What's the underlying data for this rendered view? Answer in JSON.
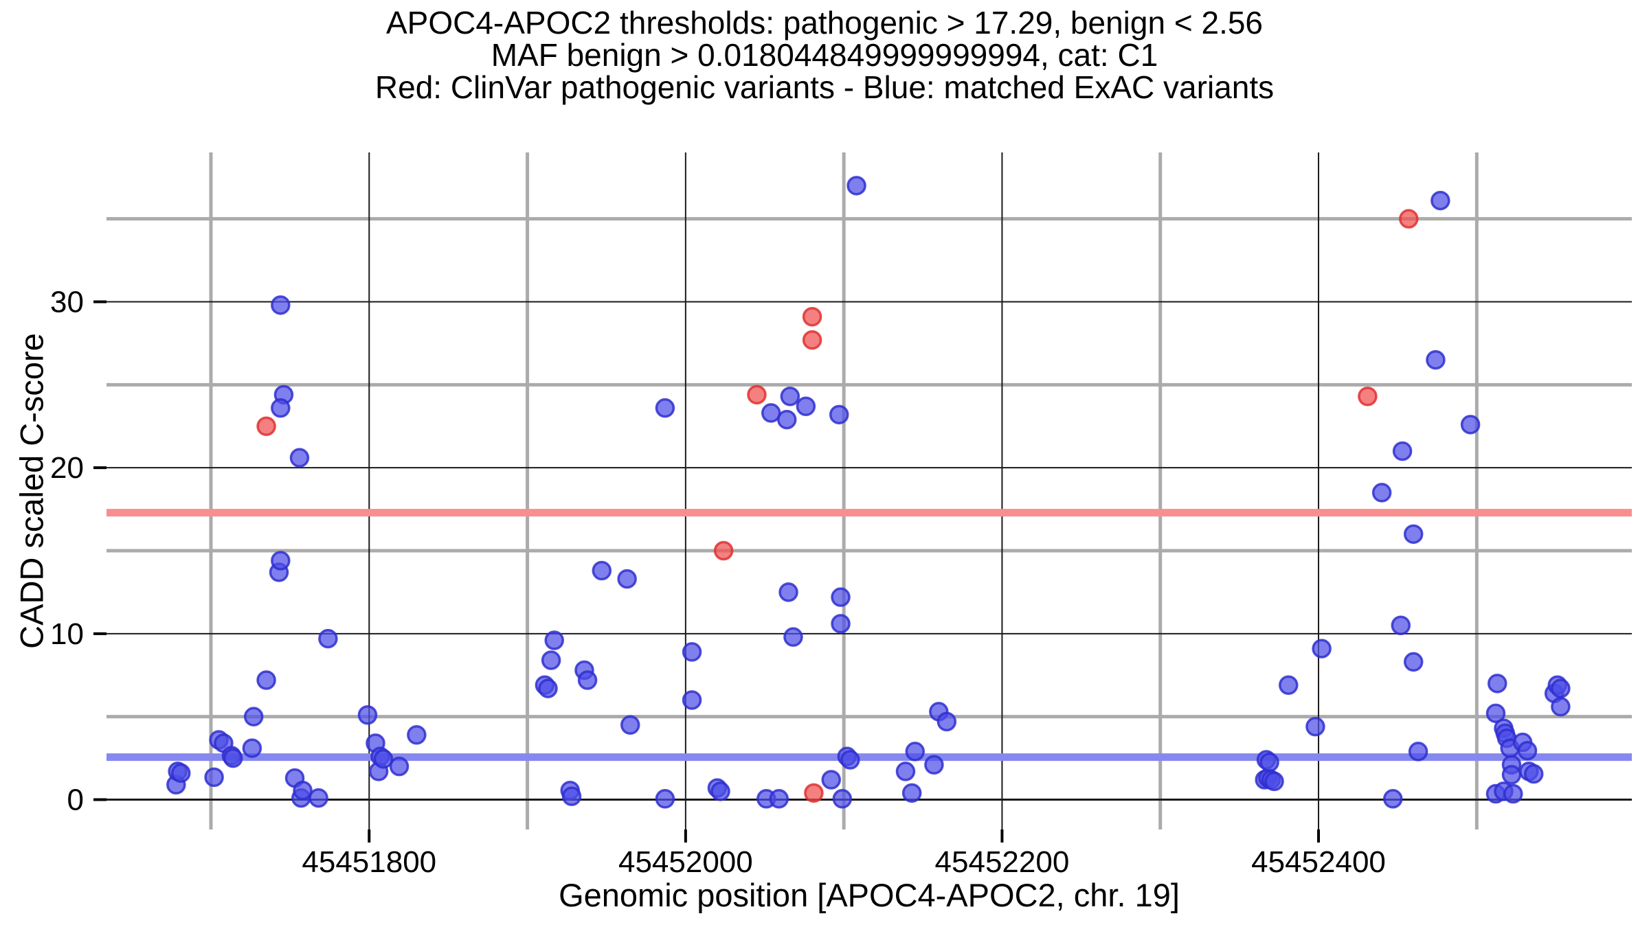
{
  "colors": {
    "background": "#ffffff",
    "grid_major": "#1a1a1a",
    "grid_minor": "#ababab",
    "tick": "#000000",
    "text": "#000000",
    "pathogenic_band": "#f98e8e",
    "benign_band": "#8688f0",
    "clinvar_point_fill": "#f04f4f",
    "clinvar_point_stroke": "#e03030",
    "exac_point_fill": "#4d4de8",
    "exac_point_stroke": "#2f2fd0"
  },
  "chart_data": {
    "type": "scatter",
    "title_lines": [
      "APOC4-APOC2 thresholds: pathogenic > 17.29, benign < 2.56",
      "MAF benign > 0.018044849999999994, cat: C1",
      "Red: ClinVar pathogenic variants - Blue: matched ExAC variants"
    ],
    "xlabel": "Genomic position [APOC4-APOC2, chr. 19]",
    "ylabel": "CADD scaled C-score",
    "xlim": [
      45451634,
      45452598
    ],
    "ylim": [
      -1.8,
      39.0
    ],
    "x_ticks": [
      45451800,
      45452000,
      45452200,
      45452400
    ],
    "x_tick_labels": [
      "45451800",
      "45452000",
      "45452200",
      "45452400"
    ],
    "x_minor": [
      45451700,
      45451900,
      45452100,
      45452300,
      45452500
    ],
    "y_ticks": [
      0,
      10,
      20,
      30
    ],
    "y_tick_labels": [
      "0",
      "10",
      "20",
      "30"
    ],
    "y_minor": [
      5,
      15,
      25,
      35
    ],
    "grid": true,
    "legend": "none",
    "hlines": [
      {
        "name": "pathogenic-threshold-band",
        "y": 17.29,
        "color_key": "pathogenic_band",
        "label": "pathogenic > 17.29"
      },
      {
        "name": "benign-threshold-band",
        "y": 2.56,
        "color_key": "benign_band",
        "label": "benign < 2.56"
      }
    ],
    "series": [
      {
        "name": "matched ExAC variants",
        "color_key": "exac_point_fill",
        "stroke_key": "exac_point_stroke",
        "points": [
          [
            45451678,
            0.9
          ],
          [
            45451679,
            1.7
          ],
          [
            45451681,
            1.6
          ],
          [
            45451702,
            1.35
          ],
          [
            45451705,
            3.6
          ],
          [
            45451708,
            3.4
          ],
          [
            45451713,
            2.65
          ],
          [
            45451714,
            2.5
          ],
          [
            45451726,
            3.1
          ],
          [
            45451727,
            5.0
          ],
          [
            45451735,
            7.2
          ],
          [
            45451743,
            13.7
          ],
          [
            45451744,
            14.4
          ],
          [
            45451744,
            29.8
          ],
          [
            45451746,
            24.4
          ],
          [
            45451744,
            23.6
          ],
          [
            45451753,
            1.3
          ],
          [
            45451756,
            20.6
          ],
          [
            45451757,
            0.1
          ],
          [
            45451758,
            0.55
          ],
          [
            45451768,
            0.1
          ],
          [
            45451774,
            9.7
          ],
          [
            45451799,
            5.1
          ],
          [
            45451804,
            3.4
          ],
          [
            45451806,
            1.7
          ],
          [
            45451807,
            2.6
          ],
          [
            45451809,
            2.45
          ],
          [
            45451819,
            2.0
          ],
          [
            45451830,
            3.9
          ],
          [
            45451911,
            6.9
          ],
          [
            45451913,
            6.7
          ],
          [
            45451915,
            8.4
          ],
          [
            45451917,
            9.6
          ],
          [
            45451927,
            0.55
          ],
          [
            45451928,
            0.2
          ],
          [
            45451936,
            7.8
          ],
          [
            45451938,
            7.2
          ],
          [
            45451947,
            13.8
          ],
          [
            45451963,
            13.3
          ],
          [
            45451965,
            4.5
          ],
          [
            45451987,
            23.6
          ],
          [
            45451987,
            0.05
          ],
          [
            45452004,
            8.9
          ],
          [
            45452004,
            6.0
          ],
          [
            45452020,
            0.7
          ],
          [
            45452022,
            0.5
          ],
          [
            45452051,
            0.05
          ],
          [
            45452054,
            23.3
          ],
          [
            45452059,
            0.05
          ],
          [
            45452064,
            22.9
          ],
          [
            45452065,
            12.5
          ],
          [
            45452066,
            24.3
          ],
          [
            45452068,
            9.8
          ],
          [
            45452076,
            23.7
          ],
          [
            45452092,
            1.2
          ],
          [
            45452097,
            23.2
          ],
          [
            45452098,
            12.2
          ],
          [
            45452098,
            10.6
          ],
          [
            45452099,
            0.05
          ],
          [
            45452102,
            2.6
          ],
          [
            45452104,
            2.4
          ],
          [
            45452108,
            37.0
          ],
          [
            45452139,
            1.7
          ],
          [
            45452143,
            0.4
          ],
          [
            45452145,
            2.9
          ],
          [
            45452157,
            2.1
          ],
          [
            45452160,
            5.3
          ],
          [
            45452165,
            4.7
          ],
          [
            45452366,
            1.2
          ],
          [
            45452368,
            1.3
          ],
          [
            45452370,
            1.2
          ],
          [
            45452372,
            1.1
          ],
          [
            45452367,
            2.4
          ],
          [
            45452369,
            2.25
          ],
          [
            45452381,
            6.9
          ],
          [
            45452398,
            4.4
          ],
          [
            45452402,
            9.1
          ],
          [
            45452440,
            18.5
          ],
          [
            45452447,
            0.05
          ],
          [
            45452452,
            10.5
          ],
          [
            45452453,
            21.0
          ],
          [
            45452460,
            16.0
          ],
          [
            45452460,
            8.3
          ],
          [
            45452463,
            2.9
          ],
          [
            45452474,
            26.5
          ],
          [
            45452477,
            36.1
          ],
          [
            45452496,
            22.6
          ],
          [
            45452512,
            5.2
          ],
          [
            45452512,
            0.35
          ],
          [
            45452513,
            7.0
          ],
          [
            45452517,
            4.3
          ],
          [
            45452517,
            0.5
          ],
          [
            45452518,
            4.0
          ],
          [
            45452519,
            3.7
          ],
          [
            45452521,
            3.1
          ],
          [
            45452522,
            2.1
          ],
          [
            45452522,
            1.5
          ],
          [
            45452523,
            0.35
          ],
          [
            45452529,
            3.45
          ],
          [
            45452532,
            2.95
          ],
          [
            45452533,
            1.7
          ],
          [
            45452536,
            1.55
          ],
          [
            45452549,
            6.4
          ],
          [
            45452551,
            6.9
          ],
          [
            45452553,
            6.7
          ],
          [
            45452553,
            5.6
          ]
        ]
      },
      {
        "name": "ClinVar pathogenic variants",
        "color_key": "clinvar_point_fill",
        "stroke_key": "clinvar_point_stroke",
        "points": [
          [
            45451735,
            22.5
          ],
          [
            45452024,
            15.0
          ],
          [
            45452045,
            24.4
          ],
          [
            45452080,
            29.1
          ],
          [
            45452080,
            27.7
          ],
          [
            45452081,
            0.4
          ],
          [
            45452431,
            24.3
          ],
          [
            45452457,
            35.0
          ]
        ]
      }
    ]
  }
}
